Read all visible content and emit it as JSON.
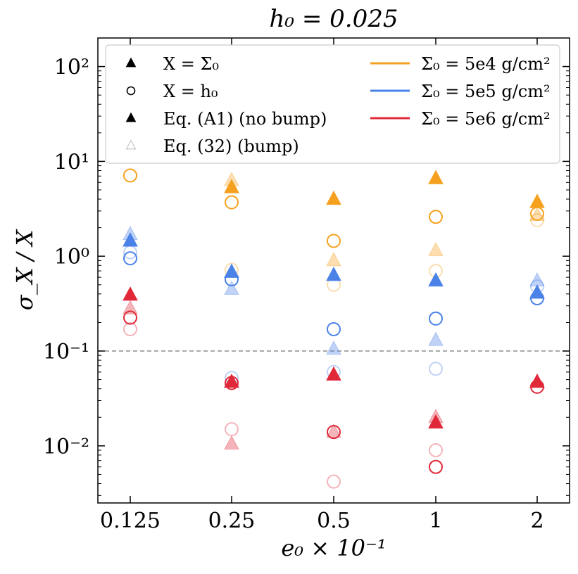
{
  "chart_data": {
    "type": "scatter",
    "title": "h₀ = 0.025",
    "xlabel": "e₀ × 10⁻¹",
    "ylabel": "σ_X / X",
    "yscale": "log",
    "ylim": [
      0.0025,
      200
    ],
    "categories": [
      "0.125",
      "0.25",
      "0.5",
      "1",
      "2"
    ],
    "y_ticks": [
      {
        "value": 0.01,
        "label": "10⁻²"
      },
      {
        "value": 0.1,
        "label": "10⁻¹"
      },
      {
        "value": 1,
        "label": "10⁰"
      },
      {
        "value": 10,
        "label": "10¹"
      },
      {
        "value": 100,
        "label": "10²"
      }
    ],
    "reference_line": {
      "value": 0.1,
      "style": "dashed"
    },
    "legend": {
      "placement": "top",
      "markers": [
        {
          "name": "X = Σ₀",
          "shape": "triangle",
          "filled": true
        },
        {
          "name": "X = h₀",
          "shape": "circle",
          "filled": false
        },
        {
          "name": "Eq. (A1) (no bump)",
          "shape": "triangle",
          "filled": true
        },
        {
          "name": "Eq. (32) (bump)",
          "shape": "triangle",
          "filled": true,
          "faded": true
        }
      ],
      "colors": [
        {
          "name": "Σ₀ = 5e4 g/cm²",
          "color": "#f5a11f"
        },
        {
          "name": "Σ₀ = 5e5 g/cm²",
          "color": "#4a82e8"
        },
        {
          "name": "Σ₀ = 5e6 g/cm²",
          "color": "#e02838"
        }
      ]
    },
    "series": [
      {
        "name": "Σ₀ = 5e4, X = Σ₀, no bump",
        "color": "#f5a11f",
        "marker": "triangle",
        "faded": false,
        "values": [
          null,
          5.3,
          4.0,
          6.6,
          3.7
        ]
      },
      {
        "name": "Σ₀ = 5e4, X = Σ₀, bump",
        "color": "#f5a11f",
        "marker": "triangle",
        "faded": true,
        "values": [
          null,
          6.3,
          0.9,
          1.15,
          2.7
        ]
      },
      {
        "name": "Σ₀ = 5e4, X = h₀, no bump",
        "color": "#f5a11f",
        "marker": "circle",
        "faded": false,
        "values": [
          7.1,
          3.7,
          1.45,
          2.6,
          2.8
        ]
      },
      {
        "name": "Σ₀ = 5e4, X = h₀, bump",
        "color": "#f5a11f",
        "marker": "circle",
        "faded": true,
        "values": [
          null,
          0.72,
          0.5,
          0.7,
          2.4
        ]
      },
      {
        "name": "Σ₀ = 5e5, X = Σ₀, no bump",
        "color": "#4a82e8",
        "marker": "triangle",
        "faded": false,
        "values": [
          1.45,
          0.68,
          0.63,
          0.55,
          0.41
        ]
      },
      {
        "name": "Σ₀ = 5e5, X = Σ₀, bump",
        "color": "#4a82e8",
        "marker": "triangle",
        "faded": true,
        "values": [
          1.7,
          0.45,
          0.105,
          0.13,
          0.55
        ]
      },
      {
        "name": "Σ₀ = 5e5, X = h₀, no bump",
        "color": "#4a82e8",
        "marker": "circle",
        "faded": false,
        "values": [
          0.95,
          0.57,
          0.17,
          0.22,
          0.36
        ]
      },
      {
        "name": "Σ₀ = 5e5, X = h₀, bump",
        "color": "#4a82e8",
        "marker": "circle",
        "faded": true,
        "values": [
          1.1,
          0.052,
          0.06,
          0.065,
          0.48
        ]
      },
      {
        "name": "Σ₀ = 5e6, X = Σ₀, no bump",
        "color": "#e02838",
        "marker": "triangle",
        "faded": false,
        "values": [
          0.39,
          0.047,
          0.056,
          0.0175,
          0.047
        ]
      },
      {
        "name": "Σ₀ = 5e6, X = Σ₀, bump",
        "color": "#e02838",
        "marker": "triangle",
        "faded": true,
        "values": [
          0.28,
          0.0105,
          0.014,
          0.02,
          null
        ]
      },
      {
        "name": "Σ₀ = 5e6, X = h₀, no bump",
        "color": "#e02838",
        "marker": "circle",
        "faded": false,
        "values": [
          0.225,
          0.046,
          0.014,
          0.006,
          0.042
        ]
      },
      {
        "name": "Σ₀ = 5e6, X = h₀, bump",
        "color": "#e02838",
        "marker": "circle",
        "faded": true,
        "values": [
          0.17,
          0.015,
          0.0042,
          0.009,
          null
        ]
      }
    ]
  }
}
